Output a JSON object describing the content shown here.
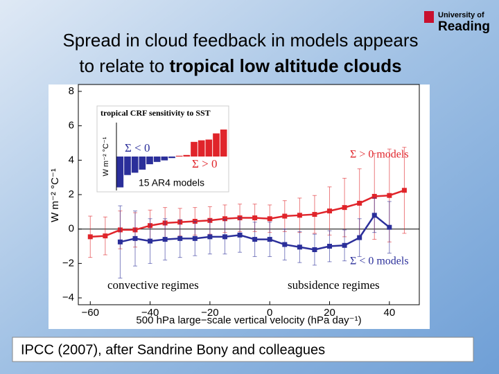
{
  "slide": {
    "title": [
      "Spread in cloud feedback in models appears",
      "to relate to ",
      "tropical low altitude clouds"
    ],
    "footer": "IPCC (2007), after Sandrine Bony and colleagues",
    "logo": [
      "University of",
      "Reading"
    ]
  },
  "chart_data": [
    {
      "type": "line",
      "xlabel": "500 hPa large−scale vertical velocity (hPa day⁻¹)",
      "ylabel": "W m⁻² °C⁻¹",
      "x": [
        -60,
        -55,
        -50,
        -45,
        -40,
        -35,
        -30,
        -25,
        -20,
        -15,
        -10,
        -5,
        0,
        5,
        10,
        15,
        20,
        25,
        30,
        35,
        40,
        45
      ],
      "series": [
        {
          "name": "Σ > 0 models",
          "color": "#e0242a",
          "values": [
            -0.45,
            -0.4,
            -0.05,
            -0.05,
            0.2,
            0.35,
            0.4,
            0.45,
            0.5,
            0.6,
            0.65,
            0.65,
            0.6,
            0.75,
            0.8,
            0.85,
            1.05,
            1.25,
            1.5,
            1.9,
            1.95,
            2.25
          ],
          "errors": [
            1.2,
            1.1,
            1.1,
            1.0,
            0.9,
            0.9,
            0.8,
            0.8,
            0.8,
            0.8,
            0.8,
            0.8,
            0.8,
            0.9,
            1.0,
            1.1,
            1.4,
            1.7,
            2.0,
            2.5,
            2.7,
            2.5
          ]
        },
        {
          "name": "Σ < 0 models",
          "color": "#2b2f9a",
          "values": [
            null,
            null,
            -0.75,
            -0.55,
            -0.7,
            -0.6,
            -0.55,
            -0.55,
            -0.45,
            -0.45,
            -0.35,
            -0.6,
            -0.6,
            -0.9,
            -1.05,
            -1.2,
            -1.0,
            -0.95,
            -0.5,
            0.8,
            0.1,
            null
          ],
          "errors": [
            null,
            null,
            2.1,
            1.6,
            1.3,
            1.2,
            1.1,
            1.0,
            1.0,
            1.0,
            1.0,
            1.0,
            1.0,
            0.9,
            0.9,
            0.9,
            0.9,
            0.9,
            1.1,
            1.0,
            1.5,
            null
          ]
        }
      ],
      "annotations": [
        "convective regimes",
        "subsidence regimes"
      ],
      "xlim": [
        -64,
        50
      ],
      "xticks": [
        {
          "value": -60,
          "label": "−60"
        },
        {
          "value": -40,
          "label": "−40"
        },
        {
          "value": -20,
          "label": "−20"
        },
        0,
        20,
        40
      ],
      "ylim": [
        -4.4,
        8.4
      ],
      "yticks": [
        {
          "value": -4,
          "label": "−4"
        },
        {
          "value": -2,
          "label": "−2"
        },
        0,
        2,
        4,
        6,
        8
      ]
    },
    {
      "type": "bar",
      "title": "tropical CRF sensitivity to SST",
      "ylabel": "W m⁻² °C⁻¹",
      "values": [
        -2.0,
        -1.2,
        -1.05,
        -0.85,
        -0.5,
        -0.35,
        -0.25,
        -0.1,
        0.05,
        0.1,
        0.95,
        1.05,
        1.1,
        1.5,
        1.75
      ],
      "colors": [
        "#2b2f9a",
        "#e0242a"
      ],
      "annotations": [
        "Σ < 0",
        "Σ > 0",
        "15 AR4 models"
      ],
      "ylim": [
        -2.2,
        2.2
      ]
    }
  ]
}
